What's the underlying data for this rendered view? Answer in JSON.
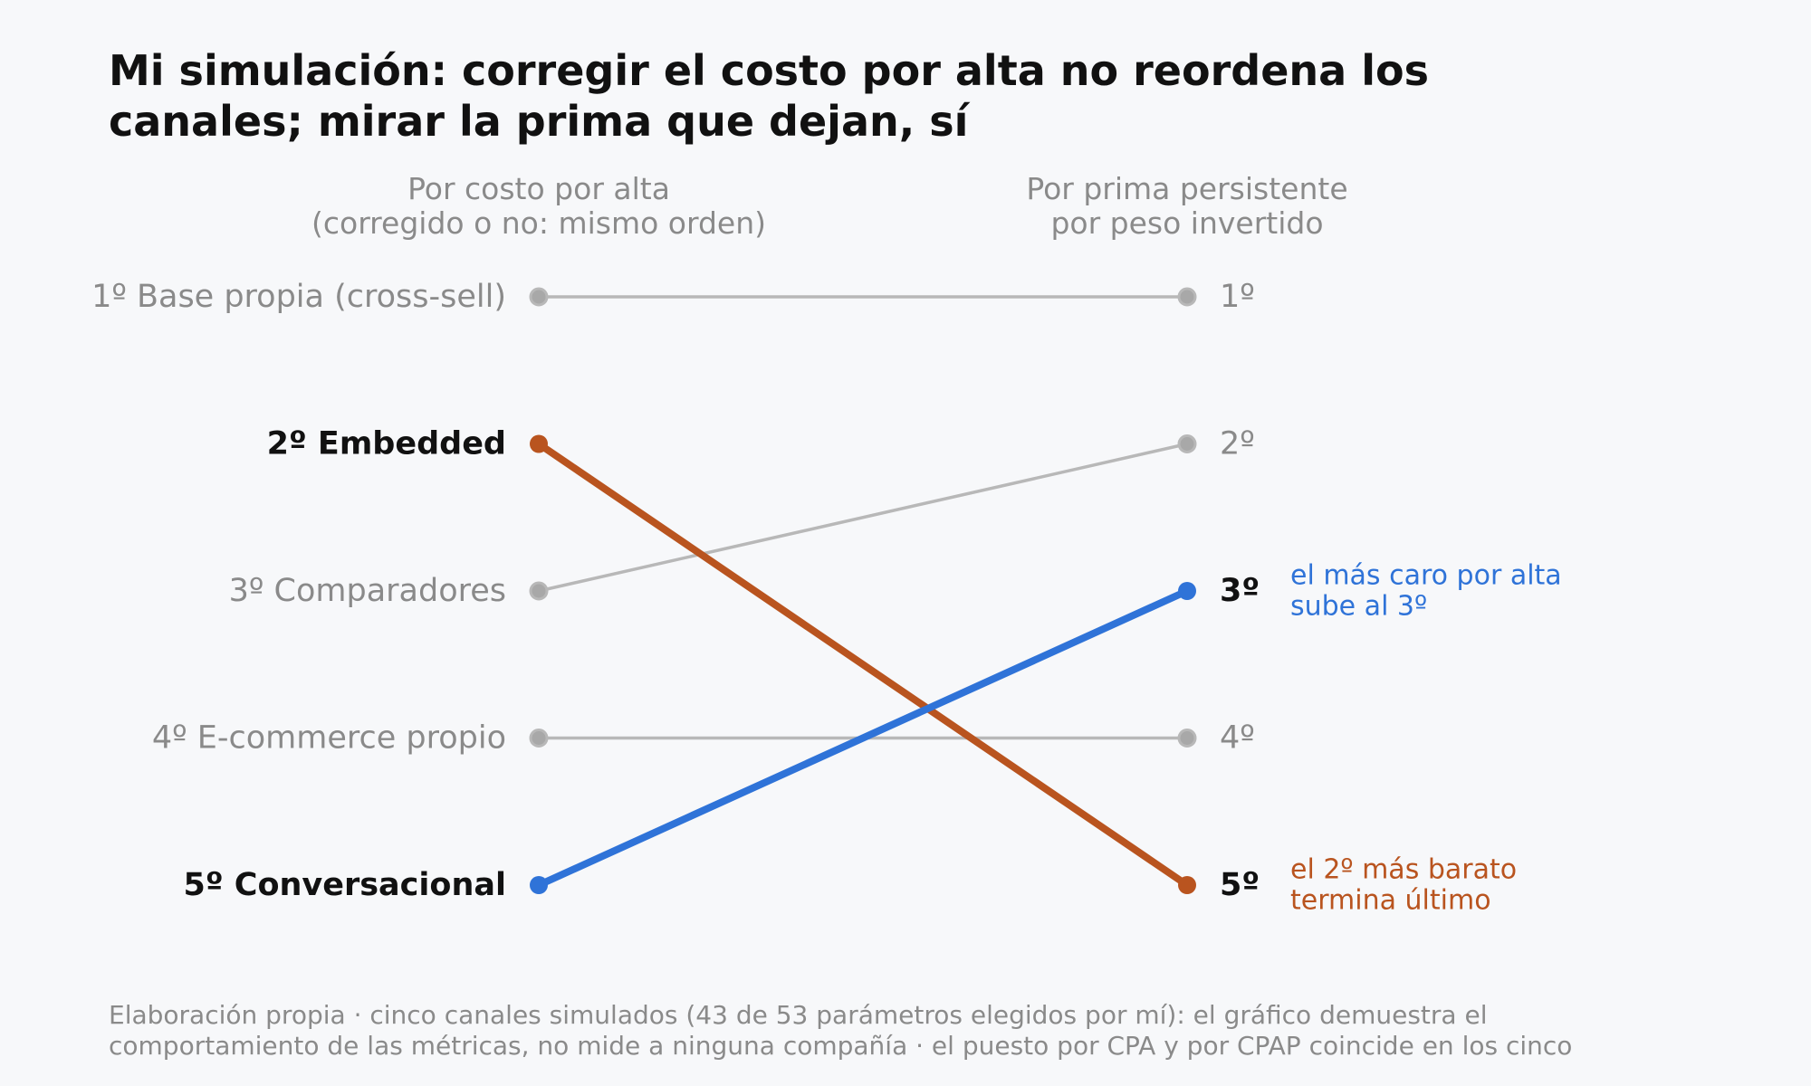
{
  "title_lines": [
    "Mi simulación: corregir el costo por alta no reordena los",
    "canales; mirar la prima que dejan, sí"
  ],
  "left_header": [
    "Por costo por alta",
    "(corregido o no: mismo orden)"
  ],
  "right_header": [
    "Por prima persistente",
    "por peso invertido"
  ],
  "footer_lines": [
    "Elaboración propia · cinco canales simulados (43 de 53 parámetros elegidos por mí): el gráfico demuestra el",
    "comportamiento de las métricas, no mide a ninguna compañía · el puesto por CPA y por CPAP coincide en los cinco"
  ],
  "colors": {
    "muted": "#b8b8b8",
    "muted_dot": "#a8a8a8",
    "muted_text": "#8a8a8a",
    "emphasis_text": "#111111",
    "orange": "#b9541f",
    "blue": "#2f73d8"
  },
  "chart_data": {
    "type": "slope",
    "left_axis": "Por costo por alta",
    "right_axis": "Por prima persistente por peso invertido",
    "rank_range": [
      1,
      5
    ],
    "series": [
      {
        "name": "Base propia (cross-sell)",
        "left_label": "1º  Base propia (cross-sell)",
        "left_rank": 1,
        "right_rank": 1,
        "right_label": "1º",
        "highlight": "none"
      },
      {
        "name": "Embedded",
        "left_label": "2º  Embedded",
        "left_rank": 2,
        "right_rank": 5,
        "right_label": "5º",
        "highlight": "orange"
      },
      {
        "name": "Comparadores",
        "left_label": "3º  Comparadores",
        "left_rank": 3,
        "right_rank": 2,
        "right_label": "2º",
        "highlight": "none"
      },
      {
        "name": "E-commerce propio",
        "left_label": "4º  E-commerce propio",
        "left_rank": 4,
        "right_rank": 4,
        "right_label": "4º",
        "highlight": "none"
      },
      {
        "name": "Conversacional",
        "left_label": "5º  Conversacional",
        "left_rank": 5,
        "right_rank": 3,
        "right_label": "3º",
        "highlight": "blue"
      }
    ],
    "annotations": [
      {
        "rank": 3,
        "color": "blue",
        "lines": [
          "el más caro por alta",
          "sube al 3º"
        ]
      },
      {
        "rank": 5,
        "color": "orange",
        "lines": [
          "el 2º más barato",
          "termina último"
        ]
      }
    ]
  }
}
